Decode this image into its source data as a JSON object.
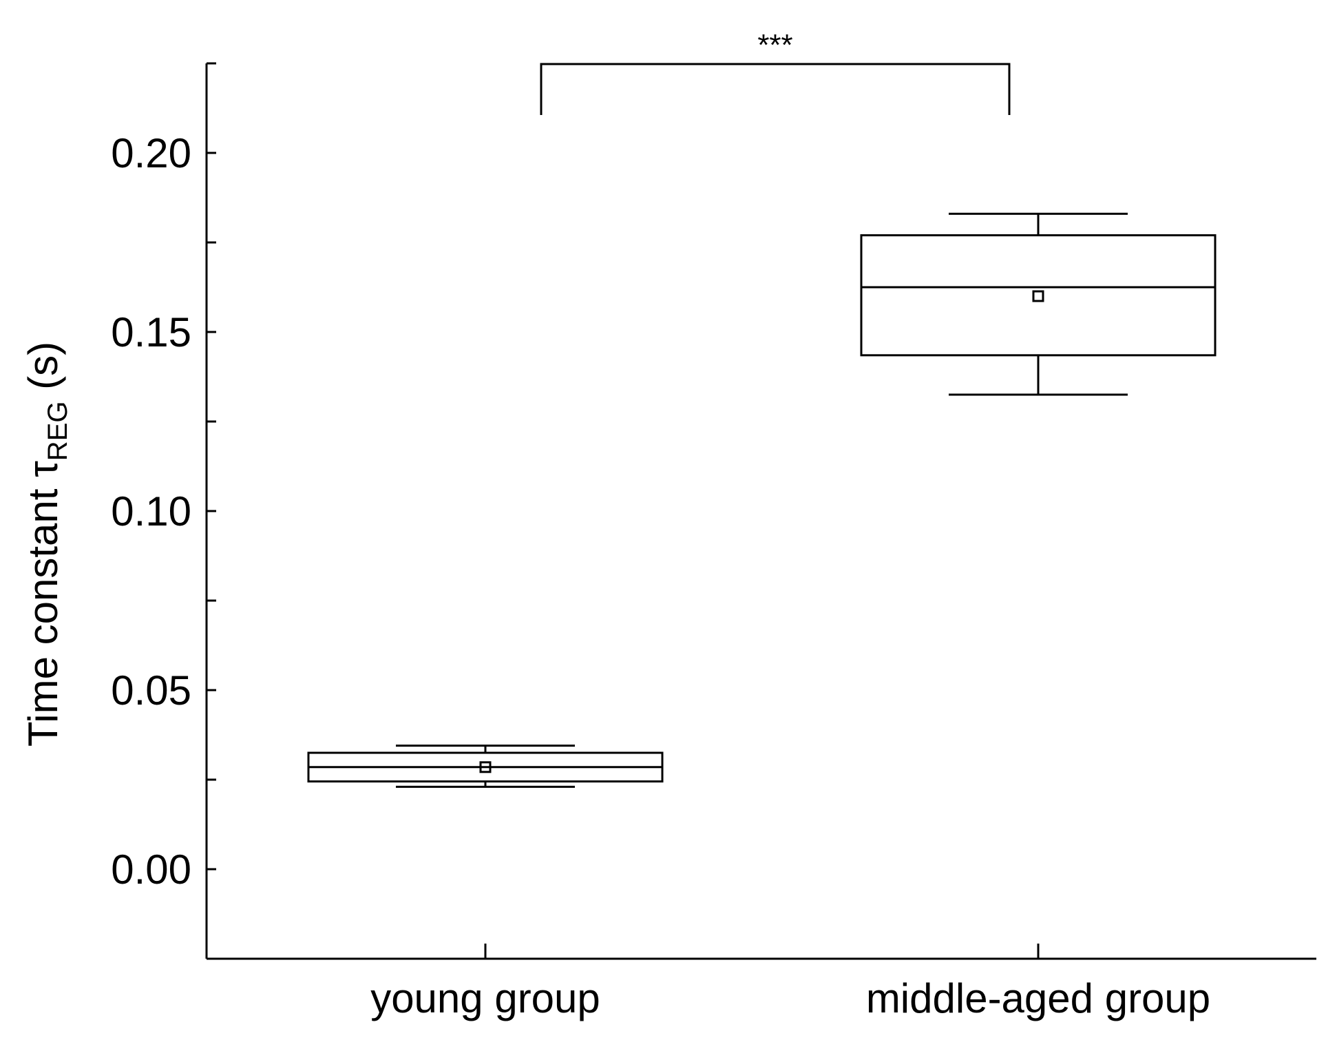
{
  "chart_data": {
    "type": "box",
    "ylabel": {
      "main": "Time constant ",
      "symbol": "τ",
      "subscript": "REG",
      "unit": " (s)"
    },
    "ylim": [
      -0.025,
      0.225
    ],
    "yticks": [
      0.0,
      0.05,
      0.1,
      0.15,
      0.2
    ],
    "ytick_labels": [
      "0.00",
      "0.05",
      "0.10",
      "0.15",
      "0.20"
    ],
    "yminor_ticks": [
      0.025,
      0.075,
      0.125,
      0.175,
      0.225
    ],
    "categories": [
      "young group",
      "middle-aged group"
    ],
    "boxes": [
      {
        "category": "young group",
        "whisker_low": 0.023,
        "q1": 0.0245,
        "median": 0.0285,
        "q3": 0.0325,
        "whisker_high": 0.0345,
        "mean": 0.0285
      },
      {
        "category": "middle-aged group",
        "whisker_low": 0.1325,
        "q1": 0.1435,
        "median": 0.1625,
        "q3": 0.177,
        "whisker_high": 0.183,
        "mean": 0.16
      }
    ],
    "significance": {
      "label": "***",
      "from": "young group",
      "to": "middle-aged group"
    }
  }
}
